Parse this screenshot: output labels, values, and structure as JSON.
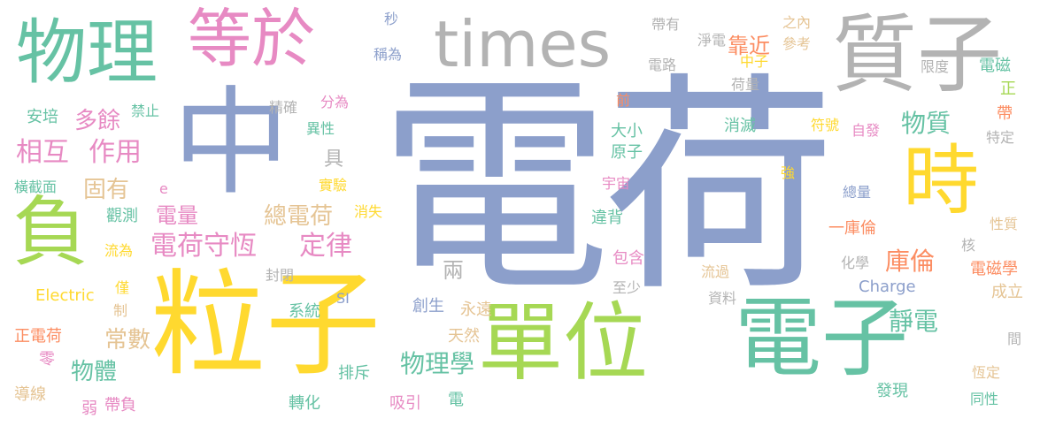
{
  "colors": {
    "blue": "#8c9fcb",
    "green": "#66c2a4",
    "lime": "#a6d854",
    "yellow": "#ffd92f",
    "pink": "#e78ac3",
    "orange": "#fc8d62",
    "tan": "#e5c494",
    "gray": "#b3b3b3"
  },
  "words": [
    "電荷",
    "中",
    "粒子",
    "單位",
    "電子",
    "負",
    "時",
    "質子",
    "times",
    "物理",
    "等於",
    "電荷守恆",
    "定律",
    "相互",
    "作用",
    "總電荷",
    "多餘",
    "固有",
    "物理學",
    "物質",
    "庫倫",
    "靜電",
    "物體",
    "常數",
    "電量",
    "靠近",
    "一庫倫",
    "正電荷",
    "兩",
    "原子",
    "大小",
    "轉化",
    "發現",
    "包含",
    "排斥",
    "吸引",
    "導線",
    "弱",
    "帶負",
    "零",
    "Electric",
    "Charge",
    "SI",
    "e",
    "秒",
    "稱為",
    "分為",
    "精確",
    "禁止",
    "安培",
    "異性",
    "具",
    "實驗",
    "消失",
    "觀測",
    "橫截面",
    "流為",
    "僅",
    "制",
    "封閉",
    "系統",
    "創生",
    "永遠",
    "天然",
    "至少",
    "資料",
    "流過",
    "違背",
    "宇宙",
    "前",
    "消滅",
    "符號",
    "自發",
    "強",
    "總量",
    "帶有",
    "淨電",
    "之內",
    "參考",
    "中子",
    "電路",
    "荷量",
    "限度",
    "電磁",
    "正",
    "帶",
    "特定",
    "性質",
    "核",
    "電磁學",
    "成立",
    "恆定",
    "同性",
    "間",
    "化學",
    "電"
  ]
}
